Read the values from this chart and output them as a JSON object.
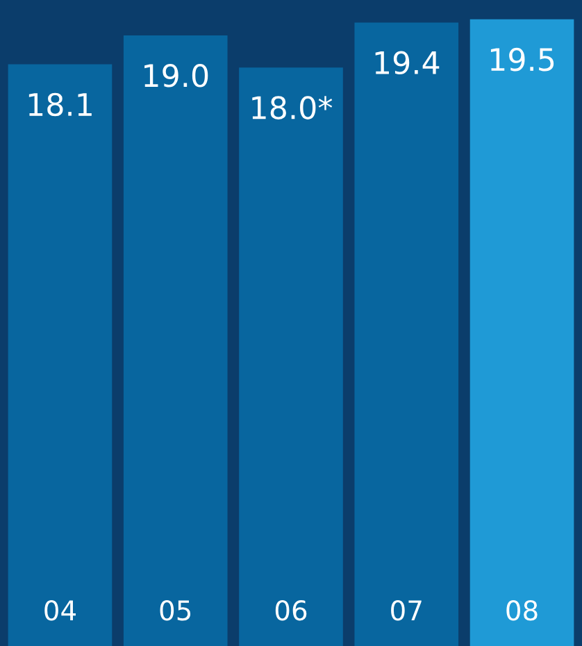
{
  "chart_data": {
    "type": "bar",
    "categories": [
      "04",
      "05",
      "06",
      "07",
      "08"
    ],
    "values": [
      18.1,
      19.0,
      18.0,
      19.4,
      19.5
    ],
    "colors": [
      "#08669f",
      "#08669f",
      "#08669f",
      "#08669f",
      "#1f9ad6"
    ],
    "value_labels": [
      "18.1",
      "19.0",
      "18.0*",
      "19.4",
      "19.5"
    ],
    "ylim": [
      0,
      20.1
    ],
    "grid": false,
    "legend": false
  }
}
